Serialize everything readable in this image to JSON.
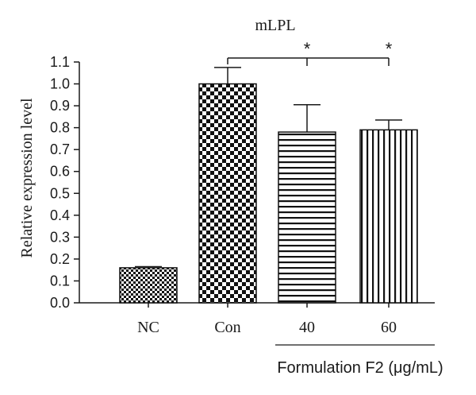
{
  "chart_data": {
    "type": "bar",
    "title": "mLPL",
    "ylabel": "Relative expression level",
    "xlabel": "",
    "ylim": [
      0,
      1.1
    ],
    "yticks": [
      "0.0",
      "0.1",
      "0.2",
      "0.3",
      "0.4",
      "0.5",
      "0.6",
      "0.7",
      "0.8",
      "0.9",
      "1.0",
      "1.1"
    ],
    "categories": [
      "NC",
      "Con",
      "40",
      "60"
    ],
    "values": [
      0.16,
      1.0,
      0.78,
      0.79
    ],
    "errors": [
      0.005,
      0.075,
      0.125,
      0.045
    ],
    "patterns": [
      "small-checker",
      "large-checker",
      "horizontal-stripes",
      "vertical-stripes"
    ],
    "significance": [
      {
        "from": "Con",
        "to": "40",
        "label": "*"
      },
      {
        "from": "Con",
        "to": "60",
        "label": "*"
      }
    ],
    "group_label": "Formulation F2 (μg/mL)",
    "group_categories": [
      "40",
      "60"
    ],
    "grid": false,
    "legend": "none",
    "colors": {
      "bar_fill": "#111111",
      "background": "#ffffff"
    }
  }
}
